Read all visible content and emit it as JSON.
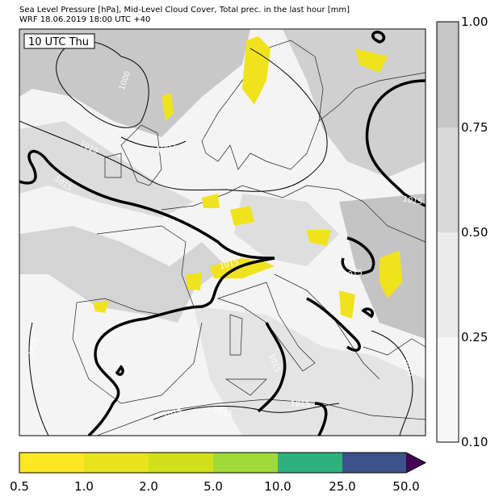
{
  "header": {
    "title": "Sea Level Pressure [hPa], Mid-Level Cloud Cover, Total prec. in the last hour [mm]",
    "subtitle": "WRF 18.06.2019 18:00 UTC +40"
  },
  "map": {
    "time_label": "10 UTC Thu",
    "isobar_labels": [
      "1000",
      "1010",
      "1005",
      "1015",
      "1015",
      "1015",
      "1015",
      "1020",
      "1015",
      "1010",
      "1015",
      "1015",
      "1015"
    ]
  },
  "cloud_colorbar": {
    "ticks": [
      "0.10",
      "0.25",
      "0.50",
      "0.75",
      "1.00"
    ]
  },
  "precip_colorbar": {
    "ticks": [
      "0.5",
      "1.0",
      "2.0",
      "5.0",
      "10.0",
      "25.0",
      "50.0"
    ]
  }
}
